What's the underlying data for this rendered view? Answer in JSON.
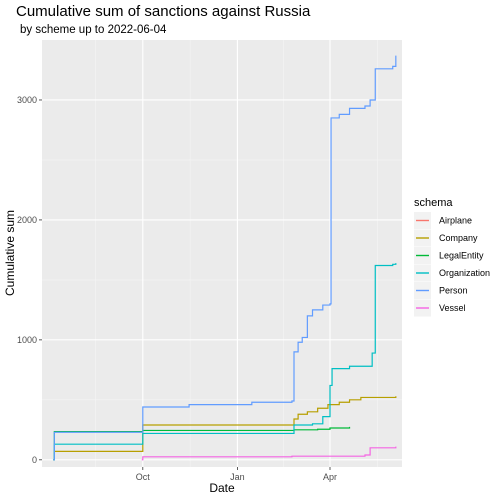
{
  "chart_data": {
    "type": "line",
    "title": "Cumulative sum of sanctions against Russia",
    "subtitle": "by scheme up to 2022-06-04",
    "xlabel": "Date",
    "ylabel": "Cumulative sum",
    "x_type": "date",
    "xlim": [
      "2021-06-25",
      "2022-06-10"
    ],
    "ylim": [
      -60,
      3500
    ],
    "x_ticks": [
      {
        "value": "2021-10-01",
        "label": "Oct"
      },
      {
        "value": "2022-01-01",
        "label": "Jan"
      },
      {
        "value": "2022-04-01",
        "label": "Apr"
      }
    ],
    "y_ticks": [
      0,
      1000,
      2000,
      3000
    ],
    "grid": true,
    "legend": {
      "title": "schema",
      "position": "right"
    },
    "series": [
      {
        "name": "Airplane",
        "color": "#F8766D",
        "points": [
          [
            "2021-07-06",
            0
          ],
          [
            "2021-07-07",
            1
          ]
        ]
      },
      {
        "name": "Company",
        "color": "#B79F00",
        "points": [
          [
            "2021-07-06",
            0
          ],
          [
            "2021-07-07",
            70
          ],
          [
            "2021-09-30",
            70
          ],
          [
            "2021-10-01",
            290
          ],
          [
            "2022-02-23",
            290
          ],
          [
            "2022-02-25",
            340
          ],
          [
            "2022-03-01",
            380
          ],
          [
            "2022-03-10",
            400
          ],
          [
            "2022-03-20",
            430
          ],
          [
            "2022-03-30",
            460
          ],
          [
            "2022-04-10",
            480
          ],
          [
            "2022-04-20",
            500
          ],
          [
            "2022-05-01",
            520
          ],
          [
            "2022-06-04",
            530
          ]
        ]
      },
      {
        "name": "LegalEntity",
        "color": "#00BA38",
        "points": [
          [
            "2021-07-06",
            0
          ],
          [
            "2021-07-07",
            235
          ],
          [
            "2021-09-30",
            235
          ],
          [
            "2021-10-01",
            245
          ],
          [
            "2022-02-23",
            245
          ],
          [
            "2022-02-25",
            250
          ],
          [
            "2022-03-20",
            255
          ],
          [
            "2022-04-01",
            265
          ],
          [
            "2022-04-20",
            275
          ]
        ]
      },
      {
        "name": "Organization",
        "color": "#00BFC4",
        "points": [
          [
            "2021-07-06",
            0
          ],
          [
            "2021-07-07",
            130
          ],
          [
            "2021-09-30",
            130
          ],
          [
            "2021-10-01",
            220
          ],
          [
            "2022-02-23",
            220
          ],
          [
            "2022-02-25",
            290
          ],
          [
            "2022-03-15",
            300
          ],
          [
            "2022-03-25",
            360
          ],
          [
            "2022-04-01",
            620
          ],
          [
            "2022-04-03",
            760
          ],
          [
            "2022-04-20",
            780
          ],
          [
            "2022-05-10",
            780
          ],
          [
            "2022-05-12",
            890
          ],
          [
            "2022-05-15",
            1620
          ],
          [
            "2022-06-01",
            1630
          ],
          [
            "2022-06-04",
            1640
          ]
        ]
      },
      {
        "name": "Person",
        "color": "#619CFF",
        "points": [
          [
            "2021-07-06",
            0
          ],
          [
            "2021-07-07",
            230
          ],
          [
            "2021-09-30",
            230
          ],
          [
            "2021-10-01",
            440
          ],
          [
            "2021-11-15",
            460
          ],
          [
            "2022-01-15",
            480
          ],
          [
            "2022-02-23",
            490
          ],
          [
            "2022-02-25",
            900
          ],
          [
            "2022-03-01",
            980
          ],
          [
            "2022-03-05",
            1020
          ],
          [
            "2022-03-10",
            1200
          ],
          [
            "2022-03-15",
            1250
          ],
          [
            "2022-03-25",
            1290
          ],
          [
            "2022-04-01",
            1300
          ],
          [
            "2022-04-02",
            2850
          ],
          [
            "2022-04-10",
            2880
          ],
          [
            "2022-04-20",
            2930
          ],
          [
            "2022-05-05",
            2950
          ],
          [
            "2022-05-10",
            3000
          ],
          [
            "2022-05-15",
            3260
          ],
          [
            "2022-06-01",
            3280
          ],
          [
            "2022-06-04",
            3370
          ]
        ]
      },
      {
        "name": "Vessel",
        "color": "#F564E3",
        "points": [
          [
            "2021-09-30",
            0
          ],
          [
            "2021-10-01",
            25
          ],
          [
            "2022-02-23",
            30
          ],
          [
            "2022-05-05",
            40
          ],
          [
            "2022-05-10",
            100
          ],
          [
            "2022-06-04",
            110
          ]
        ]
      }
    ]
  }
}
